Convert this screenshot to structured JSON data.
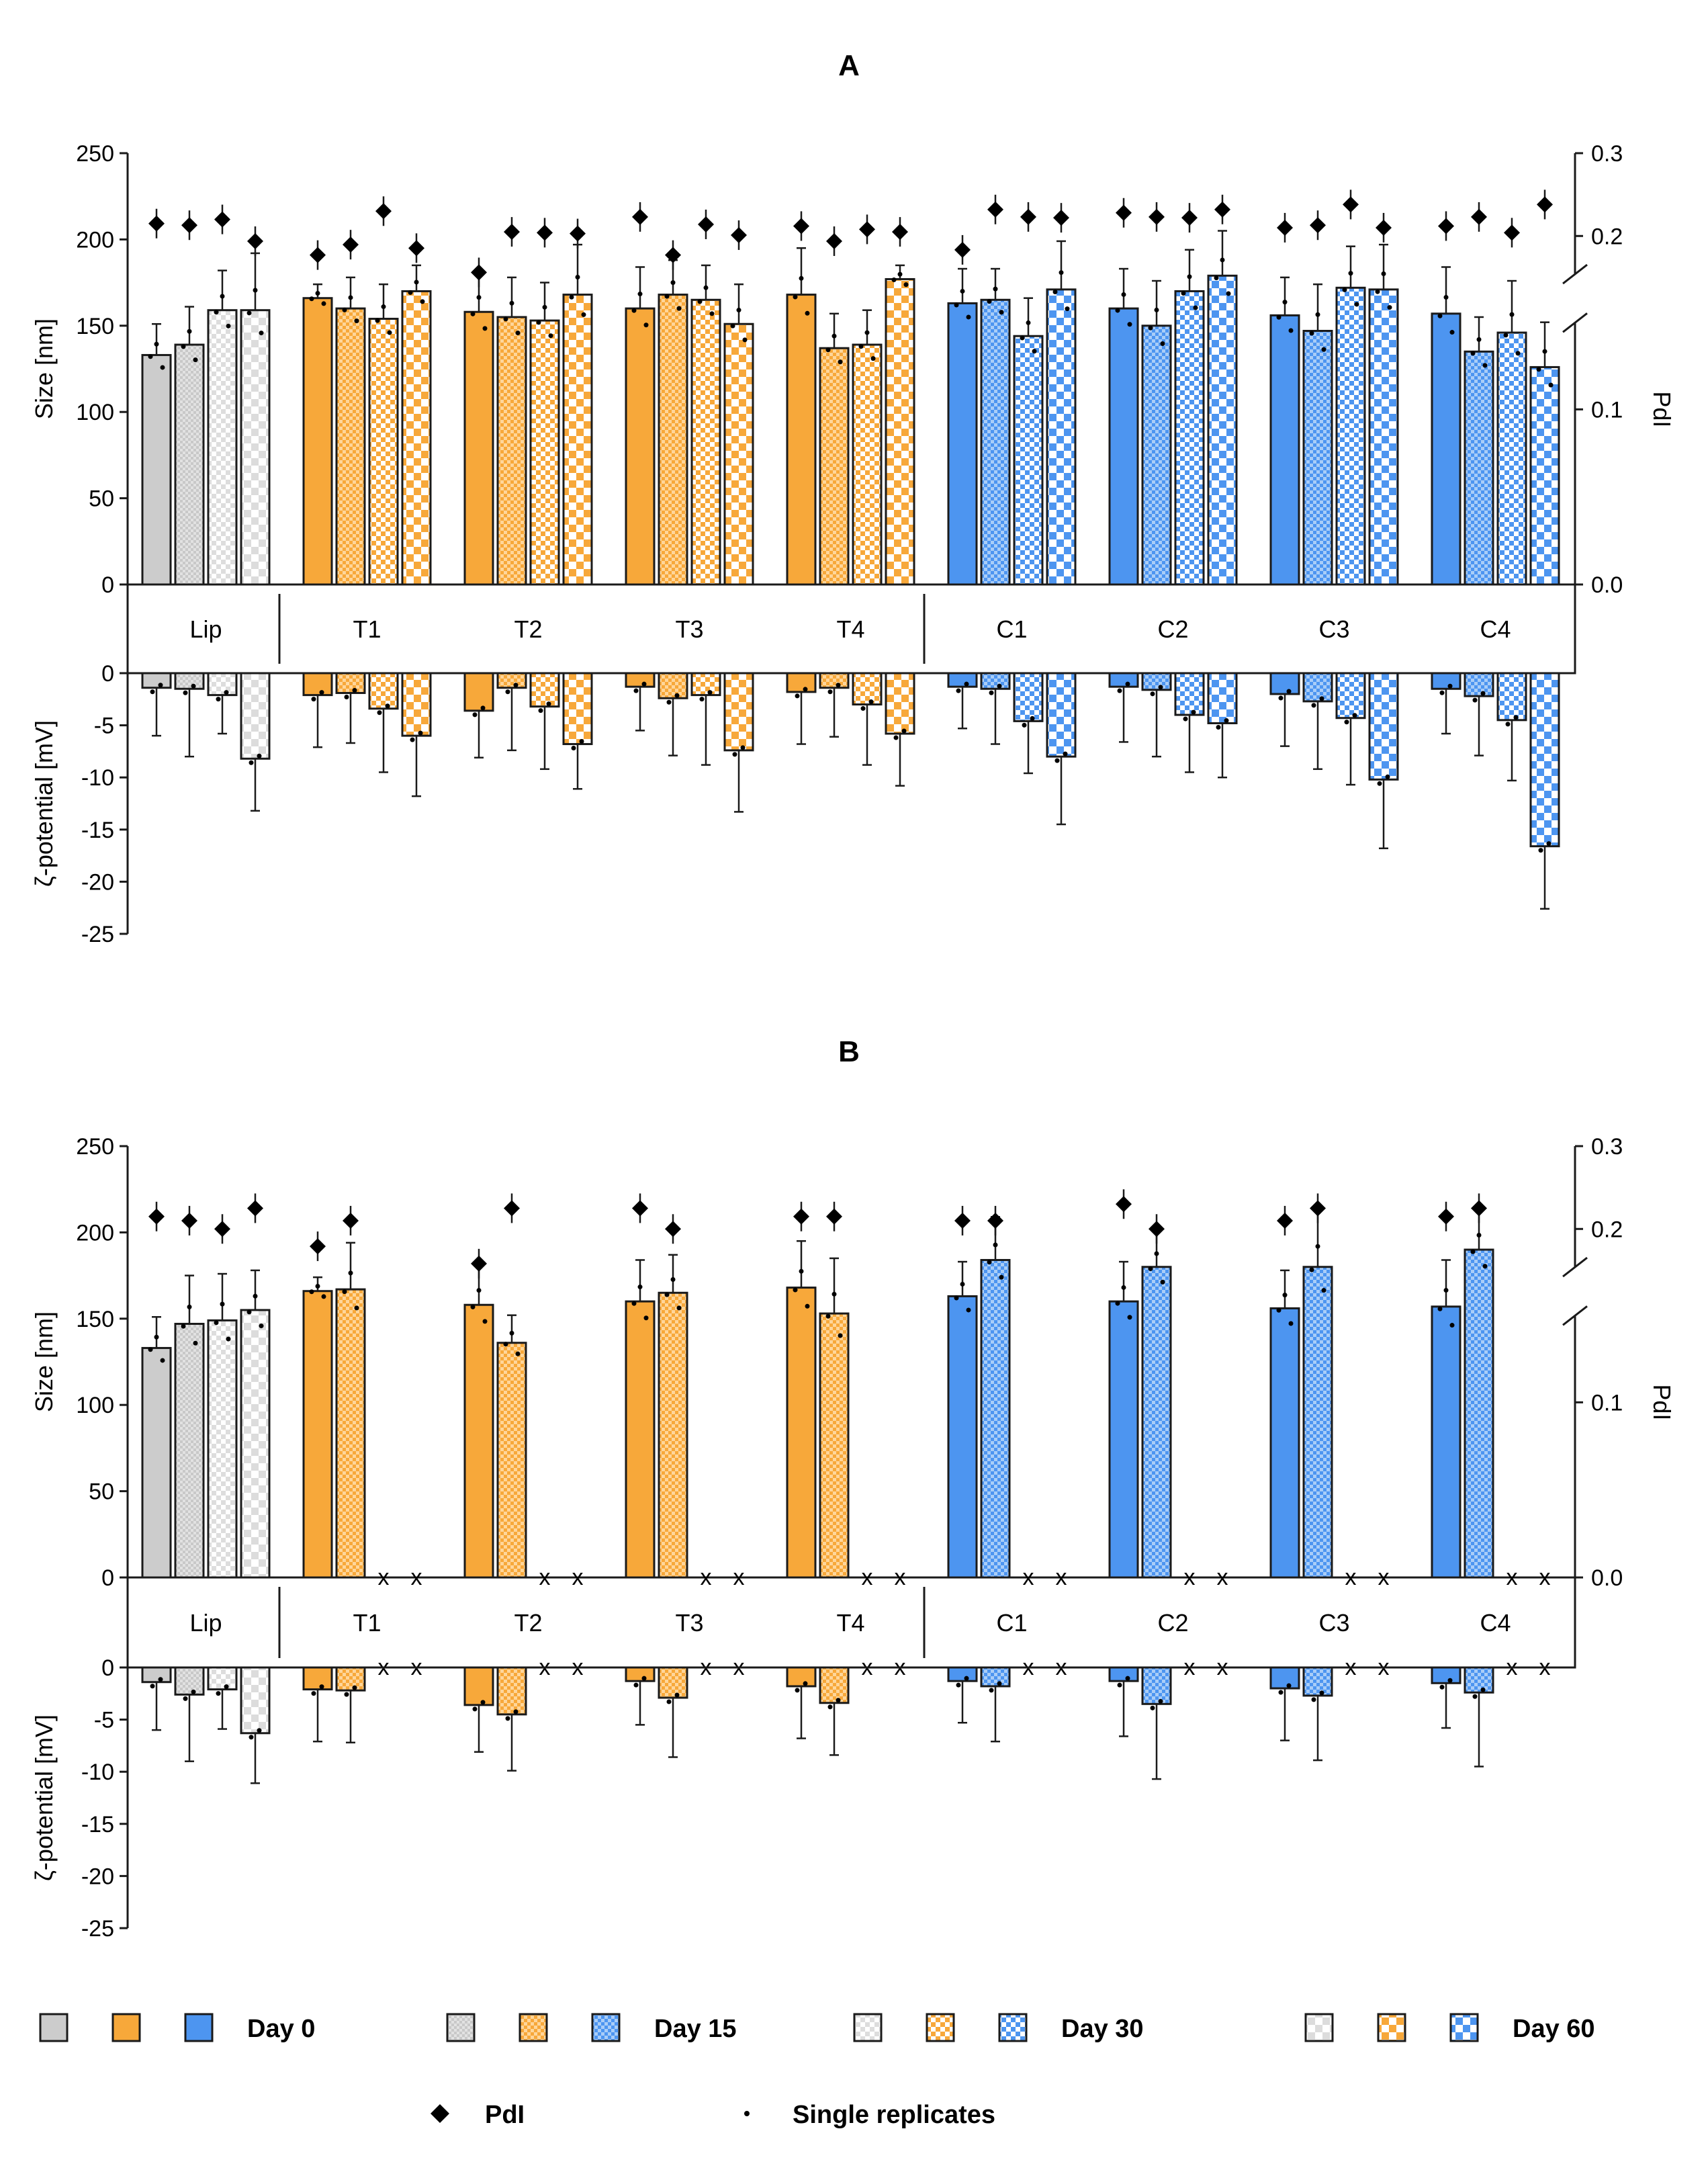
{
  "colors": {
    "Lip": {
      "fill": "#cccccc",
      "light": "#f0f0f0"
    },
    "T": {
      "fill": "#f7a83a",
      "light": "#ffffff"
    },
    "C": {
      "fill": "#4d95f0",
      "light": "#ffffff"
    }
  },
  "legend": {
    "day_labels": [
      "Day 0",
      "Day 15",
      "Day 30",
      "Day 60"
    ],
    "pdi_label": "PdI",
    "replicates_label": "Single replicates"
  },
  "chart_data": [
    {
      "type": "bar",
      "title": "A",
      "groups": [
        "Lip",
        "T1",
        "T2",
        "T3",
        "T4",
        "C1",
        "C2",
        "C3",
        "C4"
      ],
      "series": [
        "Day 0",
        "Day 15",
        "Day 30",
        "Day 60"
      ],
      "size": {
        "ylabel": "Size [nm]",
        "ylim": [
          0,
          250
        ],
        "ticks": [
          "0",
          "50",
          "100",
          "150",
          "200",
          "250"
        ],
        "values": [
          [
            133,
            139,
            159,
            159
          ],
          [
            166,
            160,
            154,
            170
          ],
          [
            158,
            155,
            153,
            168
          ],
          [
            160,
            168,
            165,
            151
          ],
          [
            168,
            137,
            139,
            177
          ],
          [
            163,
            165,
            144,
            171
          ],
          [
            160,
            150,
            170,
            179
          ],
          [
            156,
            147,
            172,
            171
          ],
          [
            157,
            135,
            146,
            126
          ]
        ],
        "errors": [
          [
            18,
            22,
            23,
            33
          ],
          [
            8,
            18,
            20,
            15
          ],
          [
            24,
            23,
            22,
            29
          ],
          [
            24,
            20,
            20,
            23
          ],
          [
            27,
            20,
            20,
            8
          ],
          [
            20,
            18,
            22,
            28
          ],
          [
            23,
            26,
            24,
            26
          ],
          [
            22,
            27,
            24,
            26
          ],
          [
            27,
            20,
            30,
            26
          ]
        ]
      },
      "pdi": {
        "ylabel": "PdI",
        "ticks": [
          "0.0",
          "0.1",
          "0.2",
          "0.3"
        ],
        "values": [
          [
            0.215,
            0.213,
            0.22,
            0.197
          ],
          [
            0.189,
            0.195,
            0.23,
            0.193
          ],
          [
            0.179,
            0.205,
            0.204,
            0.203
          ],
          [
            0.223,
            0.189,
            0.214,
            0.201
          ],
          [
            0.212,
            0.197,
            0.208,
            0.205
          ],
          [
            0.192,
            0.232,
            0.223,
            0.222
          ],
          [
            0.228,
            0.223,
            0.222,
            0.232
          ],
          [
            0.21,
            0.213,
            0.238,
            0.21
          ],
          [
            0.212,
            0.223,
            0.204,
            0.238
          ]
        ]
      },
      "zeta": {
        "ylabel": "ζ-potential [mV]",
        "ylim": [
          -25,
          0
        ],
        "ticks": [
          "0",
          "-5",
          "-10",
          "-15",
          "-20",
          "-25"
        ],
        "values": [
          [
            -1.4,
            -1.5,
            -2.1,
            -8.2
          ],
          [
            -2.1,
            -1.9,
            -3.4,
            -6.0
          ],
          [
            -3.6,
            -1.4,
            -3.2,
            -6.8
          ],
          [
            -1.3,
            -2.4,
            -2.1,
            -7.4
          ],
          [
            -1.8,
            -1.4,
            -3.0,
            -5.8
          ],
          [
            -1.3,
            -1.5,
            -4.6,
            -8.0
          ],
          [
            -1.3,
            -1.6,
            -4.0,
            -4.8
          ],
          [
            -2.0,
            -2.7,
            -4.3,
            -10.2
          ],
          [
            -1.5,
            -2.2,
            -4.5,
            -16.6
          ]
        ],
        "errors": [
          [
            4.6,
            6.5,
            3.7,
            5.0
          ],
          [
            5.0,
            4.8,
            6.1,
            5.8
          ],
          [
            4.5,
            6.0,
            6.0,
            4.3
          ],
          [
            4.2,
            5.5,
            6.7,
            5.9
          ],
          [
            5.0,
            4.7,
            5.8,
            5.0
          ],
          [
            4.0,
            5.3,
            5.0,
            6.5
          ],
          [
            5.3,
            6.4,
            5.5,
            5.2
          ],
          [
            5.0,
            6.5,
            6.4,
            6.6
          ],
          [
            4.3,
            5.7,
            5.8,
            6.0
          ]
        ]
      }
    },
    {
      "type": "bar",
      "title": "B",
      "groups": [
        "Lip",
        "T1",
        "T2",
        "T3",
        "T4",
        "C1",
        "C2",
        "C3",
        "C4"
      ],
      "series": [
        "Day 0",
        "Day 15",
        "Day 30",
        "Day 60"
      ],
      "missing_marker": "x",
      "size": {
        "ylabel": "Size [nm]",
        "ylim": [
          0,
          250
        ],
        "ticks": [
          "0",
          "50",
          "100",
          "150",
          "200",
          "250"
        ],
        "values": [
          [
            133,
            147,
            149,
            155
          ],
          [
            166,
            167,
            null,
            null
          ],
          [
            158,
            136,
            null,
            null
          ],
          [
            160,
            165,
            null,
            null
          ],
          [
            168,
            153,
            null,
            null
          ],
          [
            163,
            184,
            null,
            null
          ],
          [
            160,
            180,
            null,
            null
          ],
          [
            156,
            180,
            null,
            null
          ],
          [
            157,
            190,
            null,
            null
          ]
        ],
        "errors": [
          [
            18,
            28,
            27,
            23
          ],
          [
            8,
            27,
            0,
            0
          ],
          [
            24,
            16,
            0,
            0
          ],
          [
            24,
            22,
            0,
            0
          ],
          [
            27,
            32,
            0,
            0
          ],
          [
            20,
            25,
            0,
            0
          ],
          [
            23,
            22,
            0,
            0
          ],
          [
            22,
            34,
            0,
            0
          ],
          [
            27,
            24,
            0,
            0
          ]
        ]
      },
      "pdi": {
        "ylabel": "PdI",
        "ticks": [
          "0.0",
          "0.1",
          "0.2",
          "0.3"
        ],
        "values": [
          [
            0.215,
            0.21,
            0.2,
            0.225
          ],
          [
            0.19,
            0.21,
            null,
            null
          ],
          [
            0.18,
            0.225,
            null,
            null
          ],
          [
            0.225,
            0.2,
            null,
            null
          ],
          [
            0.215,
            0.215,
            null,
            null
          ],
          [
            0.21,
            0.21,
            null,
            null
          ],
          [
            0.23,
            0.2,
            null,
            null
          ],
          [
            0.21,
            0.225,
            null,
            null
          ],
          [
            0.215,
            0.225,
            null,
            null
          ]
        ]
      },
      "zeta": {
        "ylabel": "ζ-potential [mV]",
        "ylim": [
          -25,
          0
        ],
        "ticks": [
          "0",
          "-5",
          "-10",
          "-15",
          "-20",
          "-25"
        ],
        "values": [
          [
            -1.4,
            -2.6,
            -2.1,
            -6.3
          ],
          [
            -2.1,
            -2.2,
            null,
            null
          ],
          [
            -3.6,
            -4.5,
            null,
            null
          ],
          [
            -1.3,
            -2.9,
            null,
            null
          ],
          [
            -1.8,
            -3.4,
            null,
            null
          ],
          [
            -1.3,
            -1.8,
            null,
            null
          ],
          [
            -1.3,
            -3.5,
            null,
            null
          ],
          [
            -2.0,
            -2.7,
            null,
            null
          ],
          [
            -1.5,
            -2.4,
            null,
            null
          ]
        ],
        "errors": [
          [
            4.6,
            6.4,
            3.8,
            4.8
          ],
          [
            5.0,
            5.0,
            0,
            0
          ],
          [
            4.5,
            5.4,
            0,
            0
          ],
          [
            4.2,
            5.7,
            0,
            0
          ],
          [
            5.0,
            5.0,
            0,
            0
          ],
          [
            4.0,
            5.3,
            0,
            0
          ],
          [
            5.3,
            7.2,
            0,
            0
          ],
          [
            5.0,
            6.2,
            0,
            0
          ],
          [
            4.3,
            7.1,
            0,
            0
          ]
        ]
      }
    }
  ]
}
